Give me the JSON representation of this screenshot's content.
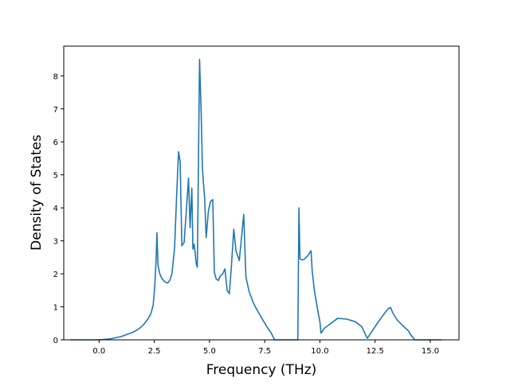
{
  "chart_data": {
    "type": "line",
    "title": "",
    "xlabel": "Frequency (THz)",
    "ylabel": "Density of States",
    "xlim": [
      -1.6,
      16.3
    ],
    "ylim": [
      0,
      8.9
    ],
    "xticks": [
      0.0,
      2.5,
      5.0,
      7.5,
      10.0,
      12.5,
      15.0
    ],
    "xtick_labels": [
      "0.0",
      "2.5",
      "5.0",
      "7.5",
      "10.0",
      "12.5",
      "15.0"
    ],
    "yticks": [
      0,
      1,
      2,
      3,
      4,
      5,
      6,
      7,
      8
    ],
    "ytick_labels": [
      "0",
      "1",
      "2",
      "3",
      "4",
      "5",
      "6",
      "7",
      "8"
    ],
    "grid": false,
    "series": [
      {
        "color": "#1f77b4",
        "x": [
          -1.3,
          0.0,
          0.5,
          1.0,
          1.5,
          1.8,
          2.0,
          2.2,
          2.35,
          2.45,
          2.52,
          2.58,
          2.62,
          2.67,
          2.75,
          2.85,
          3.0,
          3.1,
          3.2,
          3.3,
          3.42,
          3.52,
          3.6,
          3.67,
          3.75,
          3.85,
          3.95,
          4.05,
          4.12,
          4.2,
          4.25,
          4.3,
          4.35,
          4.4,
          4.45,
          4.55,
          4.62,
          4.68,
          4.72,
          4.78,
          4.85,
          4.95,
          5.05,
          5.15,
          5.22,
          5.3,
          5.4,
          5.5,
          5.6,
          5.7,
          5.8,
          5.85,
          5.9,
          6.0,
          6.1,
          6.2,
          6.35,
          6.45,
          6.55,
          6.65,
          6.8,
          7.0,
          7.2,
          7.4,
          7.6,
          7.8,
          7.95,
          8.5,
          9.0,
          9.05,
          9.1,
          9.2,
          9.3,
          9.45,
          9.6,
          9.65,
          9.75,
          9.9,
          10.0,
          10.05,
          10.2,
          10.4,
          10.6,
          10.8,
          11.2,
          11.6,
          11.9,
          12.1,
          12.15,
          12.3,
          12.6,
          12.9,
          13.1,
          13.2,
          13.3,
          13.5,
          13.8,
          14.0,
          14.15,
          14.3,
          15.0,
          15.5
        ],
        "values": [
          0.0,
          0.0,
          0.03,
          0.1,
          0.22,
          0.33,
          0.45,
          0.62,
          0.8,
          1.05,
          1.6,
          2.4,
          3.25,
          2.25,
          2.0,
          1.85,
          1.75,
          1.72,
          1.8,
          2.0,
          2.8,
          4.5,
          5.7,
          5.4,
          2.85,
          2.95,
          3.9,
          4.9,
          3.4,
          4.6,
          2.75,
          2.9,
          2.65,
          2.3,
          2.2,
          8.5,
          7.0,
          5.2,
          4.8,
          4.3,
          3.1,
          3.9,
          4.2,
          4.25,
          2.05,
          1.85,
          1.8,
          1.95,
          2.0,
          2.15,
          1.5,
          1.45,
          1.4,
          2.3,
          3.35,
          2.7,
          2.4,
          3.1,
          3.8,
          1.9,
          1.45,
          1.1,
          0.85,
          0.62,
          0.4,
          0.2,
          0.0,
          0.0,
          0.0,
          4.0,
          2.45,
          2.42,
          2.45,
          2.55,
          2.7,
          2.1,
          1.5,
          0.9,
          0.55,
          0.2,
          0.35,
          0.45,
          0.55,
          0.65,
          0.63,
          0.55,
          0.4,
          0.1,
          0.05,
          0.2,
          0.5,
          0.78,
          0.95,
          0.98,
          0.82,
          0.6,
          0.4,
          0.28,
          0.12,
          0.0,
          0.0,
          0.0
        ]
      }
    ]
  }
}
